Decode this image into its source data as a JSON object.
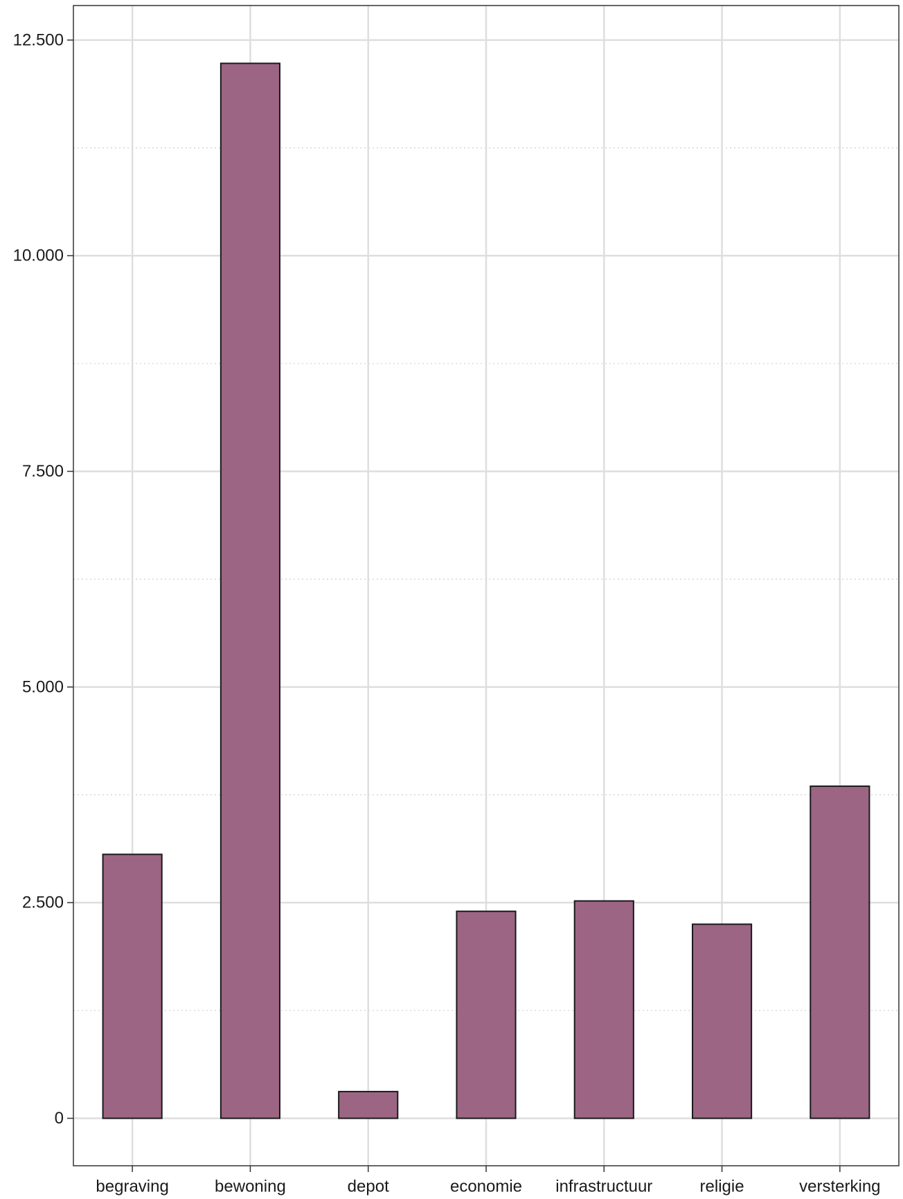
{
  "chart_data": {
    "type": "bar",
    "title": "",
    "xlabel": "",
    "ylabel": "",
    "categories": [
      "begraving",
      "bewoning",
      "depot",
      "economie",
      "infrastructuur",
      "religie",
      "versterking"
    ],
    "values": [
      3060,
      12230,
      310,
      2400,
      2520,
      2250,
      3850
    ],
    "ylim": [
      -550,
      12900
    ],
    "yticks": [
      0,
      2500,
      5000,
      7500,
      10000,
      12500
    ],
    "ytick_labels": [
      "0",
      "2.500",
      "5.000",
      "7.500",
      "10.000",
      "12.500"
    ],
    "grid": true,
    "legend": "none",
    "colors": {
      "bar_fill": "#9c6583",
      "bar_stroke": "#1a1a1a",
      "grid_major": "#dedede",
      "grid_minor": "#cfcfcf",
      "panel_border": "#333333",
      "text": "#1a1a1a"
    }
  }
}
